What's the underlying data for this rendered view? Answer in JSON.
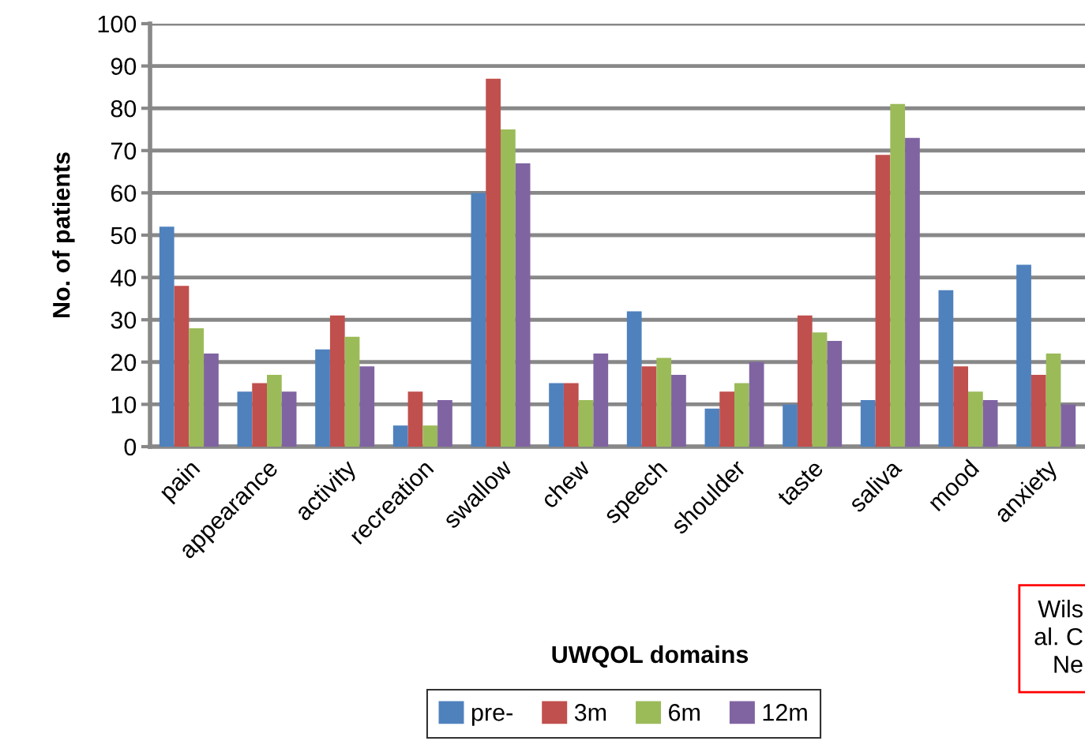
{
  "chart_data": {
    "type": "bar",
    "xlabel": "UWQOL domains",
    "ylabel": "No. of patients",
    "categories": [
      "pain",
      "appearance",
      "activity",
      "recreation",
      "swallow",
      "chew",
      "speech",
      "shoulder",
      "taste",
      "saliva",
      "mood",
      "anxiety"
    ],
    "series": [
      {
        "name": "pre-",
        "color": "#4f81bd",
        "values": [
          52,
          13,
          23,
          5,
          60,
          15,
          32,
          9,
          10,
          11,
          37,
          43
        ]
      },
      {
        "name": "3m",
        "color": "#c0504d",
        "values": [
          38,
          15,
          31,
          13,
          87,
          15,
          19,
          13,
          31,
          69,
          19,
          17
        ]
      },
      {
        "name": "6m",
        "color": "#9bbb59",
        "values": [
          28,
          17,
          26,
          5,
          75,
          11,
          21,
          15,
          27,
          81,
          13,
          22
        ]
      },
      {
        "name": "12m",
        "color": "#8064a2",
        "values": [
          22,
          13,
          19,
          11,
          67,
          22,
          17,
          20,
          25,
          73,
          11,
          10
        ]
      }
    ],
    "ylim": [
      0,
      100
    ],
    "yticks": [
      0,
      10,
      20,
      30,
      40,
      50,
      60,
      70,
      80,
      90,
      100
    ],
    "grid": "y",
    "legend": "bottom",
    "annotations": [
      "Wils\nal. C\nNe"
    ]
  }
}
